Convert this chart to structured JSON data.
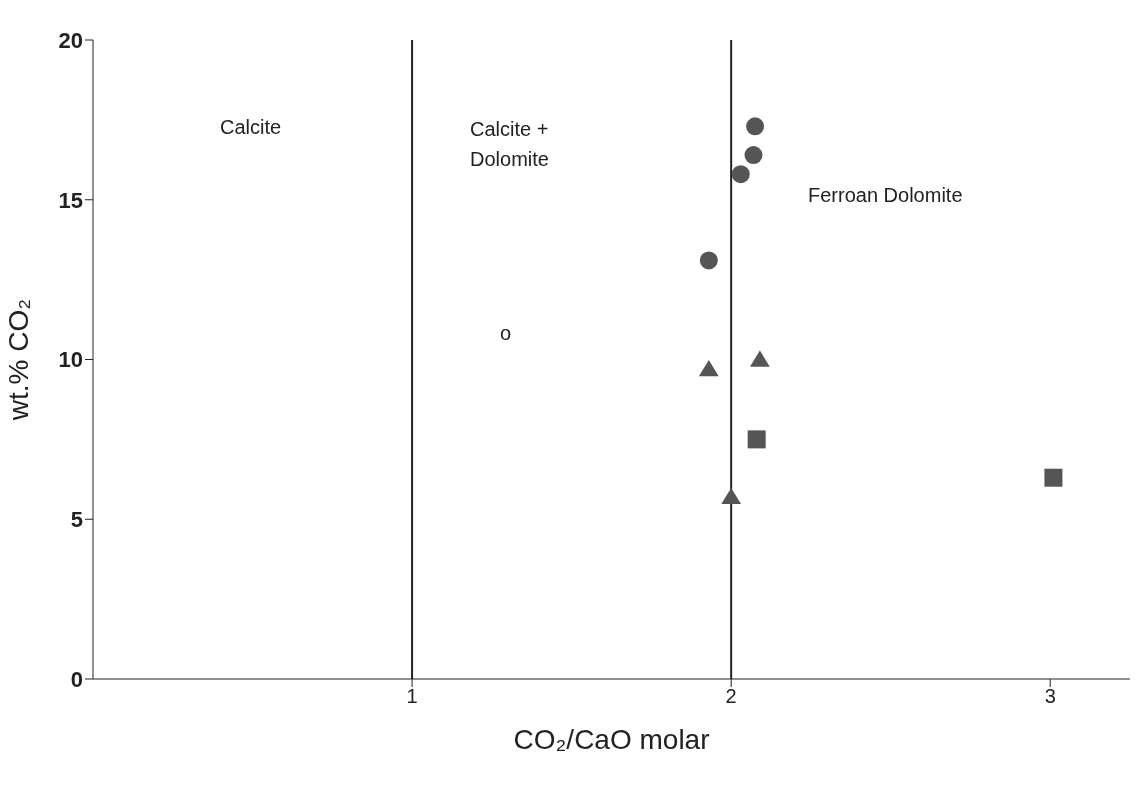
{
  "chart_data": {
    "type": "scatter",
    "xlabel": "CO₂/CaO molar",
    "ylabel": "wt.% CO₂",
    "xlim": [
      0,
      3.25
    ],
    "xticks": [
      1,
      2,
      3
    ],
    "ylim": [
      0,
      20
    ],
    "yticks": [
      0,
      5,
      10,
      15,
      20
    ],
    "grid": false,
    "legend": false,
    "series": [
      {
        "color": "#555555",
        "marker": "circle",
        "x": [
          2.075,
          2.07,
          2.03,
          1.93
        ],
        "values": [
          17.3,
          16.4,
          15.8,
          13.1
        ]
      },
      {
        "color": "#555555",
        "marker": "triangle",
        "x": [
          1.93,
          2.09,
          2.0
        ],
        "values": [
          9.7,
          10.0,
          5.7
        ]
      },
      {
        "color": "#555555",
        "marker": "square",
        "x": [
          2.08,
          3.01
        ],
        "values": [
          7.5,
          6.3
        ]
      }
    ],
    "ref_lines": [
      {
        "axis": "x",
        "value": 1,
        "color": "#222222"
      },
      {
        "axis": "x",
        "value": 2,
        "color": "#222222"
      }
    ],
    "annotations": [
      "Calcite",
      "Calcite +\nDolomite",
      "Ferroan Dolomite",
      "o"
    ]
  }
}
